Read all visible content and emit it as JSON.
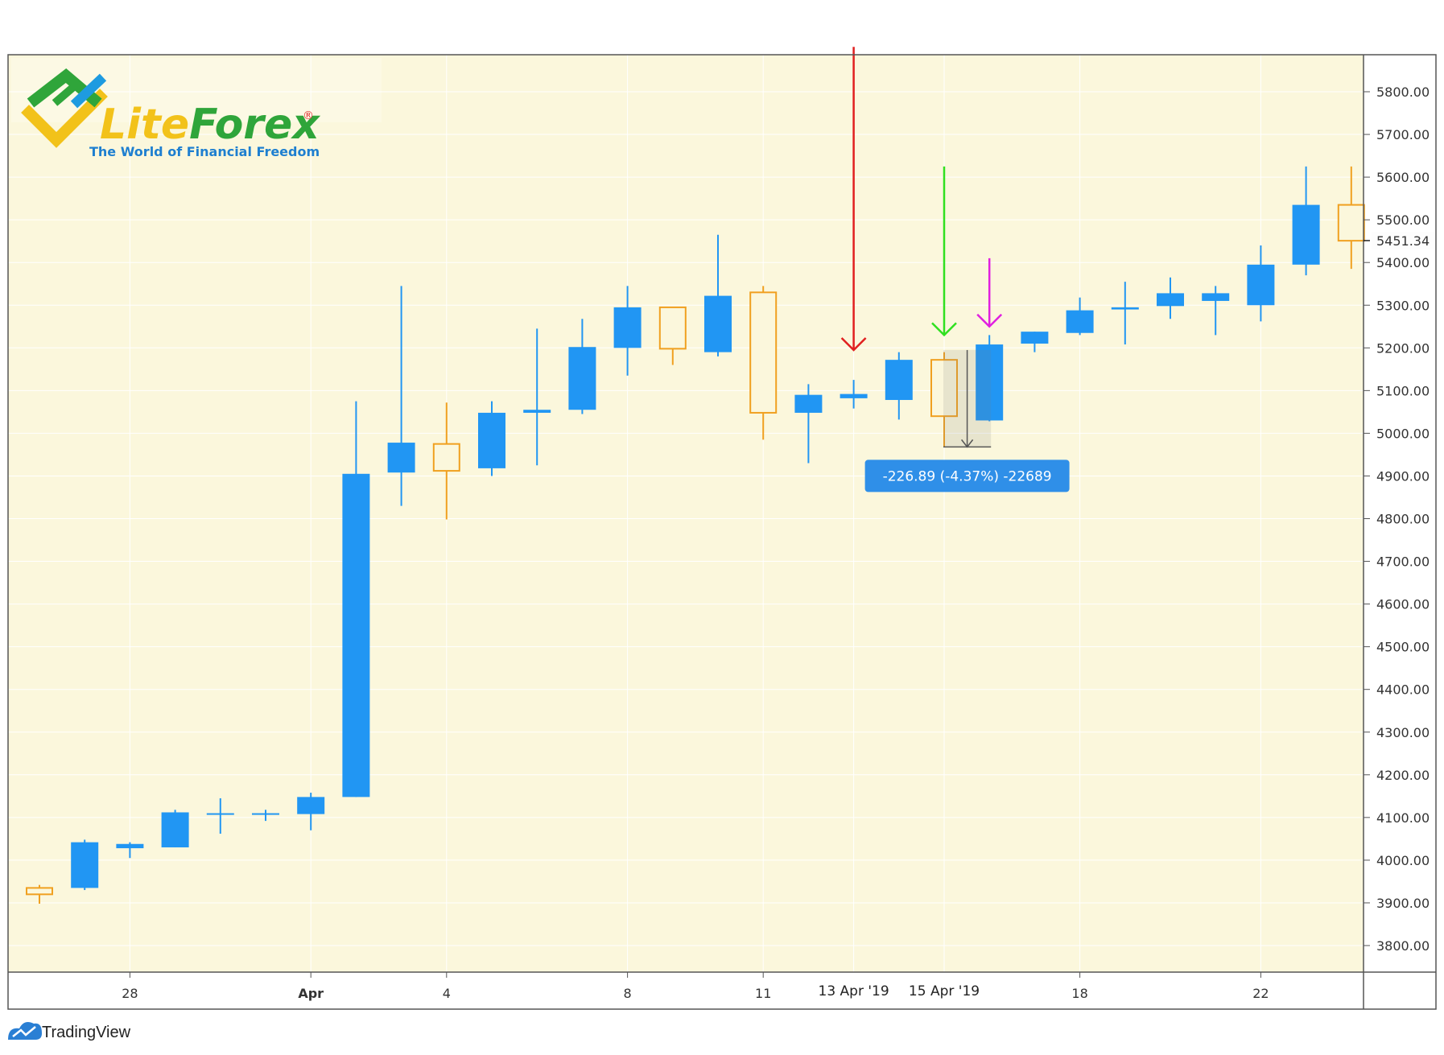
{
  "chart_data": {
    "type": "candlestick",
    "ylim": [
      3700,
      5900
    ],
    "y_ticks": [
      "5800.00",
      "5700.00",
      "5600.00",
      "5500.00",
      "5400.00",
      "5300.00",
      "5200.00",
      "5100.00",
      "5000.00",
      "4900.00",
      "4800.00",
      "4700.00",
      "4600.00",
      "4500.00",
      "4400.00",
      "4300.00",
      "4200.00",
      "4100.00",
      "4000.00",
      "3900.00",
      "3800.00"
    ],
    "x_ticks": [
      {
        "label": "28",
        "index": 2,
        "bold": false
      },
      {
        "label": "Apr",
        "index": 6,
        "bold": true
      },
      {
        "label": "4",
        "index": 9,
        "bold": false
      },
      {
        "label": "8",
        "index": 13,
        "bold": false
      },
      {
        "label": "11",
        "index": 16,
        "bold": false
      },
      {
        "label": "18",
        "index": 23,
        "bold": false
      },
      {
        "label": "22",
        "index": 27,
        "bold": false
      }
    ],
    "date_tags": [
      {
        "label": "13 Apr '19",
        "index": 18
      },
      {
        "label": "15 Apr '19",
        "index": 20
      }
    ],
    "last_price": "5451.34",
    "candles": [
      {
        "o": 3935,
        "h": 3942,
        "l": 3898,
        "c": 3920
      },
      {
        "o": 3935,
        "h": 4048,
        "l": 3930,
        "c": 4042
      },
      {
        "o": 4028,
        "h": 4042,
        "l": 4005,
        "c": 4038
      },
      {
        "o": 4030,
        "h": 4118,
        "l": 4030,
        "c": 4112
      },
      {
        "o": 4110,
        "h": 4145,
        "l": 4062,
        "c": 4110
      },
      {
        "o": 4108,
        "h": 4118,
        "l": 4092,
        "c": 4110
      },
      {
        "o": 4108,
        "h": 4158,
        "l": 4070,
        "c": 4148
      },
      {
        "o": 4148,
        "h": 5075,
        "l": 4148,
        "c": 4905
      },
      {
        "o": 4908,
        "h": 5345,
        "l": 4830,
        "c": 4978
      },
      {
        "o": 4975,
        "h": 5072,
        "l": 4798,
        "c": 4912
      },
      {
        "o": 4918,
        "h": 5075,
        "l": 4900,
        "c": 5048
      },
      {
        "o": 5048,
        "h": 5245,
        "l": 4925,
        "c": 5055
      },
      {
        "o": 5055,
        "h": 5268,
        "l": 5045,
        "c": 5202
      },
      {
        "o": 5200,
        "h": 5345,
        "l": 5135,
        "c": 5295
      },
      {
        "o": 5295,
        "h": 5295,
        "l": 5160,
        "c": 5198
      },
      {
        "o": 5190,
        "h": 5465,
        "l": 5180,
        "c": 5322
      },
      {
        "o": 5330,
        "h": 5345,
        "l": 4985,
        "c": 5048
      },
      {
        "o": 5048,
        "h": 5115,
        "l": 4930,
        "c": 5090
      },
      {
        "o": 5082,
        "h": 5125,
        "l": 5058,
        "c": 5092
      },
      {
        "o": 5078,
        "h": 5190,
        "l": 5032,
        "c": 5172
      },
      {
        "o": 5172,
        "h": 5190,
        "l": 4968,
        "c": 5040
      },
      {
        "o": 5030,
        "h": 5230,
        "l": 5028,
        "c": 5208
      },
      {
        "o": 5210,
        "h": 5238,
        "l": 5190,
        "c": 5238
      },
      {
        "o": 5235,
        "h": 5318,
        "l": 5230,
        "c": 5288
      },
      {
        "o": 5290,
        "h": 5355,
        "l": 5208,
        "c": 5295
      },
      {
        "o": 5298,
        "h": 5365,
        "l": 5268,
        "c": 5328
      },
      {
        "o": 5310,
        "h": 5345,
        "l": 5230,
        "c": 5328
      },
      {
        "o": 5300,
        "h": 5440,
        "l": 5262,
        "c": 5395
      },
      {
        "o": 5395,
        "h": 5625,
        "l": 5370,
        "c": 5535
      },
      {
        "o": 5535,
        "h": 5625,
        "l": 5385,
        "c": 5451
      }
    ],
    "colors": {
      "up": "#2196f3",
      "down": "#f0a020",
      "background": "#fbf7dc",
      "grid": "#ffffff"
    }
  },
  "annotations": {
    "arrows": [
      {
        "index": 18,
        "color": "#e02020",
        "from": 5905,
        "to": 5195
      },
      {
        "index": 20,
        "color": "#30e020",
        "from": 5625,
        "to": 5230
      },
      {
        "index": 21,
        "color": "#e020e0",
        "from": 5410,
        "to": 5250
      }
    ],
    "measure": {
      "index_start": 20,
      "index_end": 21,
      "from": 5195,
      "to": 4968,
      "label": "-226.89 (-4.37%) -22689"
    }
  },
  "logo": {
    "name": "LiteForex",
    "registered": "®",
    "tagline": "The World of Financial Freedom"
  },
  "footer": {
    "brand": "TradingView"
  }
}
